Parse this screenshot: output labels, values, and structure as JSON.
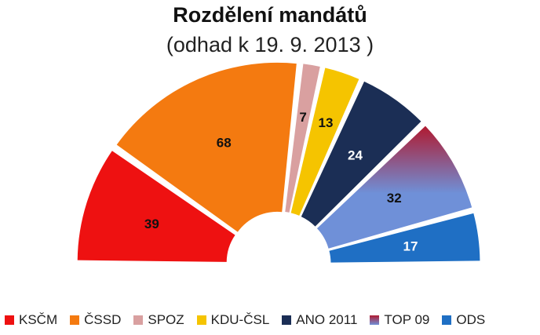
{
  "chart_data": {
    "type": "pie",
    "title": "Rozdělení mandátů",
    "subtitle": "(odhad k 19. 9. 2013 )",
    "layout": "half-donut (parliament seats)",
    "legend_position": "bottom",
    "series": [
      {
        "name": "KSČM",
        "value": 39,
        "color": "#ee1111"
      },
      {
        "name": "ČSSD",
        "value": 68,
        "color": "#f47a10"
      },
      {
        "name": "SPOZ",
        "value": 7,
        "color": "#d9a0a0"
      },
      {
        "name": "KDU-ČSL",
        "value": 13,
        "color": "#f5c400"
      },
      {
        "name": "ANO 2011",
        "value": 24,
        "color": "#1b2e55"
      },
      {
        "name": "TOP 09",
        "value": 32,
        "color": "#6f90d8",
        "color_top": "#b01a30"
      },
      {
        "name": "ODS",
        "value": 17,
        "color": "#1f6fc4"
      }
    ]
  }
}
